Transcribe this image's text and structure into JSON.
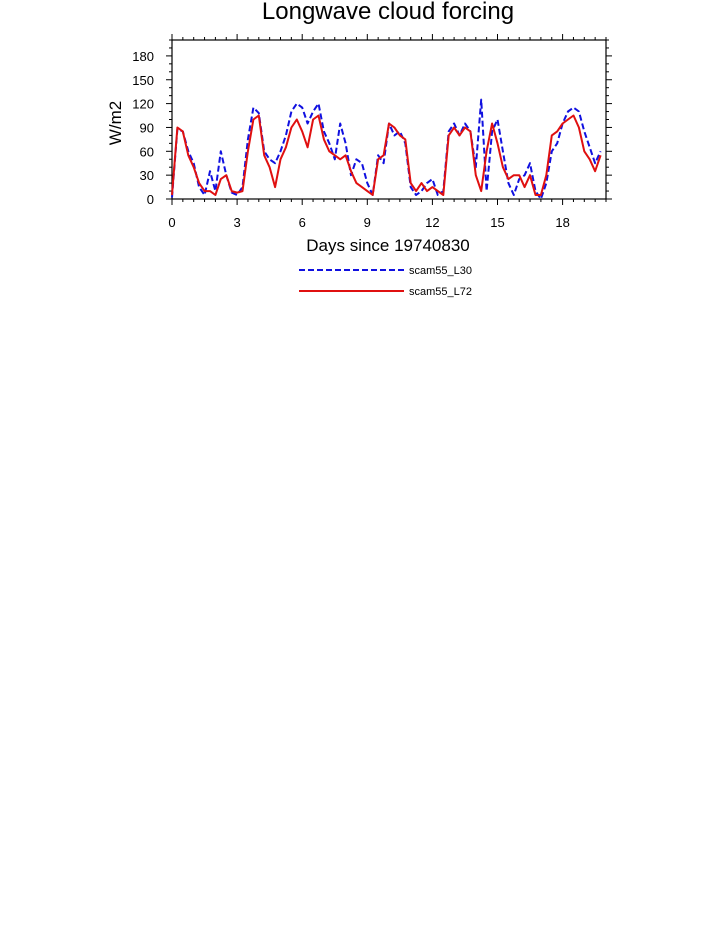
{
  "chart_data": {
    "type": "line",
    "title": "Longwave cloud forcing",
    "xlabel": "Days since 19740830",
    "ylabel": "W/m2",
    "xlim": [
      0,
      20
    ],
    "ylim": [
      0,
      200
    ],
    "x_ticks": [
      0,
      3,
      6,
      9,
      12,
      15,
      18
    ],
    "y_ticks": [
      0,
      30,
      60,
      90,
      120,
      150,
      180
    ],
    "grid": false,
    "legend_position": "bottom-center",
    "x": [
      0,
      0.25,
      0.5,
      0.75,
      1,
      1.25,
      1.5,
      1.75,
      2,
      2.25,
      2.5,
      2.75,
      3,
      3.25,
      3.5,
      3.75,
      4,
      4.25,
      4.5,
      4.75,
      5,
      5.25,
      5.5,
      5.75,
      6,
      6.25,
      6.5,
      6.75,
      7,
      7.25,
      7.5,
      7.75,
      8,
      8.25,
      8.5,
      8.75,
      9,
      9.25,
      9.5,
      9.75,
      10,
      10.25,
      10.5,
      10.75,
      11,
      11.25,
      11.5,
      11.75,
      12,
      12.25,
      12.5,
      12.75,
      13,
      13.25,
      13.5,
      13.75,
      14,
      14.25,
      14.5,
      14.75,
      15,
      15.25,
      15.5,
      15.75,
      16,
      16.25,
      16.5,
      16.75,
      17,
      17.25,
      17.5,
      17.75,
      18,
      18.25,
      18.5,
      18.75,
      19,
      19.25,
      19.5,
      19.75
    ],
    "series": [
      {
        "name": "scam55_L30",
        "color": "#1010e0",
        "dash": "dashed",
        "values": [
          2,
          88,
          85,
          60,
          45,
          15,
          5,
          35,
          10,
          60,
          30,
          8,
          5,
          15,
          75,
          115,
          108,
          60,
          50,
          45,
          60,
          80,
          110,
          120,
          115,
          95,
          110,
          120,
          85,
          70,
          50,
          95,
          70,
          30,
          50,
          45,
          20,
          5,
          55,
          45,
          95,
          80,
          85,
          70,
          15,
          5,
          10,
          20,
          25,
          5,
          10,
          85,
          95,
          80,
          95,
          85,
          40,
          125,
          10,
          85,
          100,
          60,
          20,
          5,
          25,
          30,
          45,
          10,
          0,
          20,
          60,
          70,
          95,
          110,
          115,
          110,
          85,
          65,
          45,
          60
        ]
      },
      {
        "name": "scam55_L72",
        "color": "#e01010",
        "dash": "solid",
        "values": [
          5,
          90,
          85,
          55,
          40,
          20,
          10,
          10,
          5,
          25,
          30,
          10,
          8,
          10,
          60,
          100,
          105,
          55,
          40,
          15,
          50,
          65,
          90,
          100,
          85,
          65,
          100,
          105,
          75,
          60,
          55,
          50,
          55,
          35,
          20,
          15,
          10,
          5,
          50,
          55,
          95,
          90,
          80,
          75,
          20,
          10,
          20,
          10,
          15,
          10,
          5,
          80,
          90,
          80,
          90,
          85,
          30,
          10,
          60,
          95,
          70,
          40,
          25,
          30,
          30,
          15,
          30,
          5,
          5,
          30,
          80,
          85,
          95,
          100,
          105,
          90,
          60,
          50,
          35,
          55
        ]
      }
    ]
  }
}
